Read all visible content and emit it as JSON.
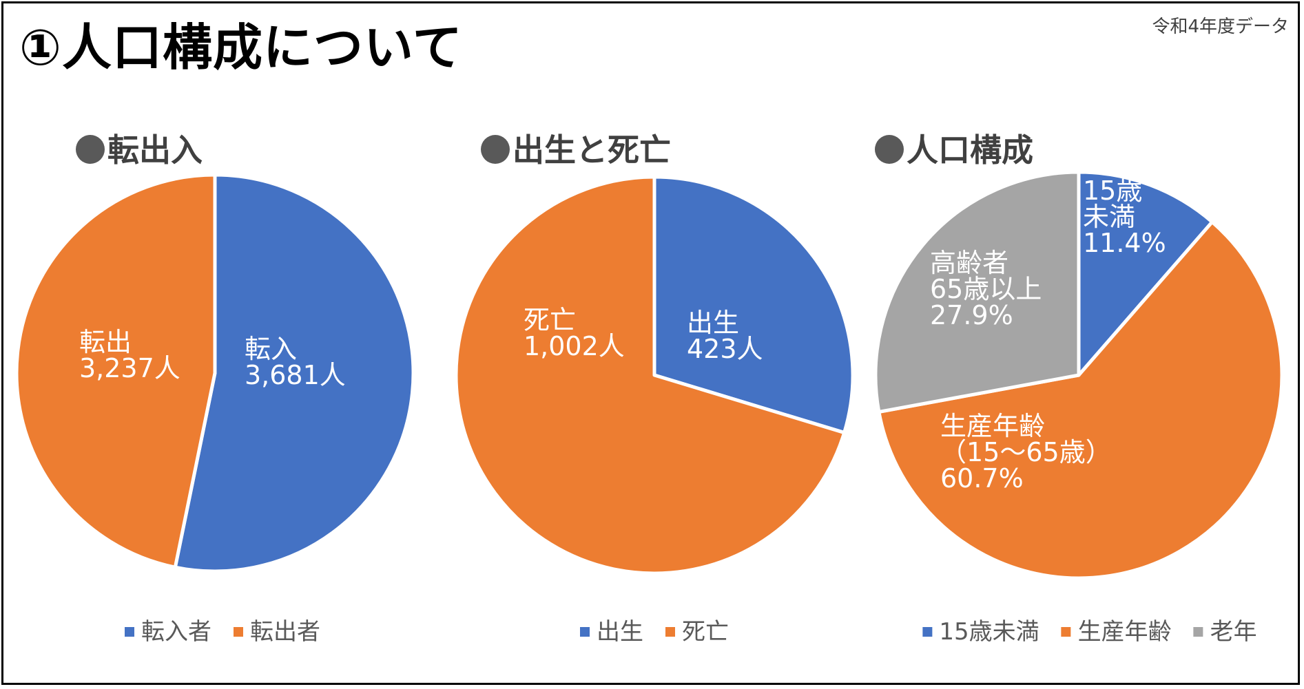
{
  "page": {
    "title": "①人口構成について",
    "note": "令和4年度データ"
  },
  "colors": {
    "blue": "#4472C4",
    "orange": "#ED7D31",
    "gray": "#A5A5A5"
  },
  "chart_data": [
    {
      "type": "pie",
      "title": "転出入",
      "categories": [
        "転入者",
        "転出者"
      ],
      "values": [
        3681,
        3237
      ],
      "colors": [
        "#4472C4",
        "#ED7D31"
      ],
      "data_labels": [
        [
          "転入",
          "3,681人"
        ],
        [
          "転出",
          "3,237人"
        ]
      ],
      "legend": "bottom"
    },
    {
      "type": "pie",
      "title": "出生と死亡",
      "categories": [
        "出生",
        "死亡"
      ],
      "values": [
        423,
        1002
      ],
      "colors": [
        "#4472C4",
        "#ED7D31"
      ],
      "data_labels": [
        [
          "出生",
          "423人"
        ],
        [
          "死亡",
          "1,002人"
        ]
      ],
      "legend": "bottom"
    },
    {
      "type": "pie",
      "title": "人口構成",
      "categories": [
        "15歳未満",
        "生産年齢",
        "老年"
      ],
      "values": [
        11.4,
        60.7,
        27.9
      ],
      "colors": [
        "#4472C4",
        "#ED7D31",
        "#A5A5A5"
      ],
      "data_labels": [
        [
          "15歳",
          "未満",
          "11.4%"
        ],
        [
          "生産年齢",
          "（15～65歳）",
          "60.7%"
        ],
        [
          "高齢者",
          "65歳以上",
          "27.9%"
        ]
      ],
      "legend": "bottom"
    }
  ]
}
